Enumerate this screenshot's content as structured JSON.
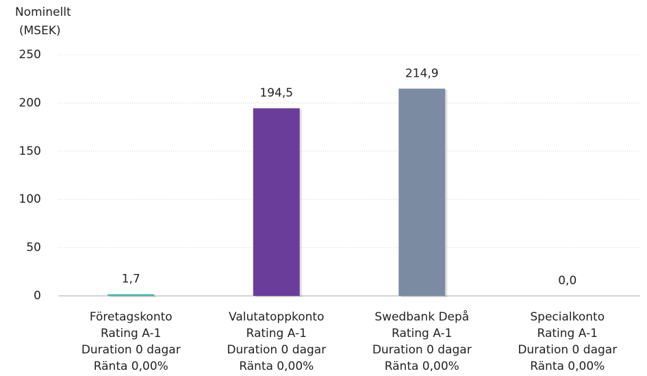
{
  "chart_data": {
    "type": "bar",
    "y_label": [
      "Nominellt",
      "(MSEK)"
    ],
    "categories": [
      [
        "Företagskonto",
        "Rating A-1",
        "Duration 0 dagar",
        "Ränta 0,00%"
      ],
      [
        "Valutatoppkonto",
        "Rating A-1",
        "Duration 0 dagar",
        "Ränta 0,00%"
      ],
      [
        "Swedbank Depå",
        "Rating A-1",
        "Duration 0 dagar",
        "Ränta 0,00%"
      ],
      [
        "Specialkonto",
        "Rating A-1",
        "Duration 0 dagar",
        "Ränta 0,00%"
      ]
    ],
    "values": [
      1.7,
      194.5,
      214.9,
      0.0
    ],
    "value_labels": [
      "1,7",
      "194,5",
      "214,9",
      "0,0"
    ],
    "colors": [
      "#3cb9b0",
      "#6a3d9a",
      "#7b8ba1",
      "#e0a030"
    ],
    "ylim": [
      0,
      250
    ],
    "yticks": [
      0,
      50,
      100,
      150,
      200,
      250
    ],
    "grid": true
  }
}
